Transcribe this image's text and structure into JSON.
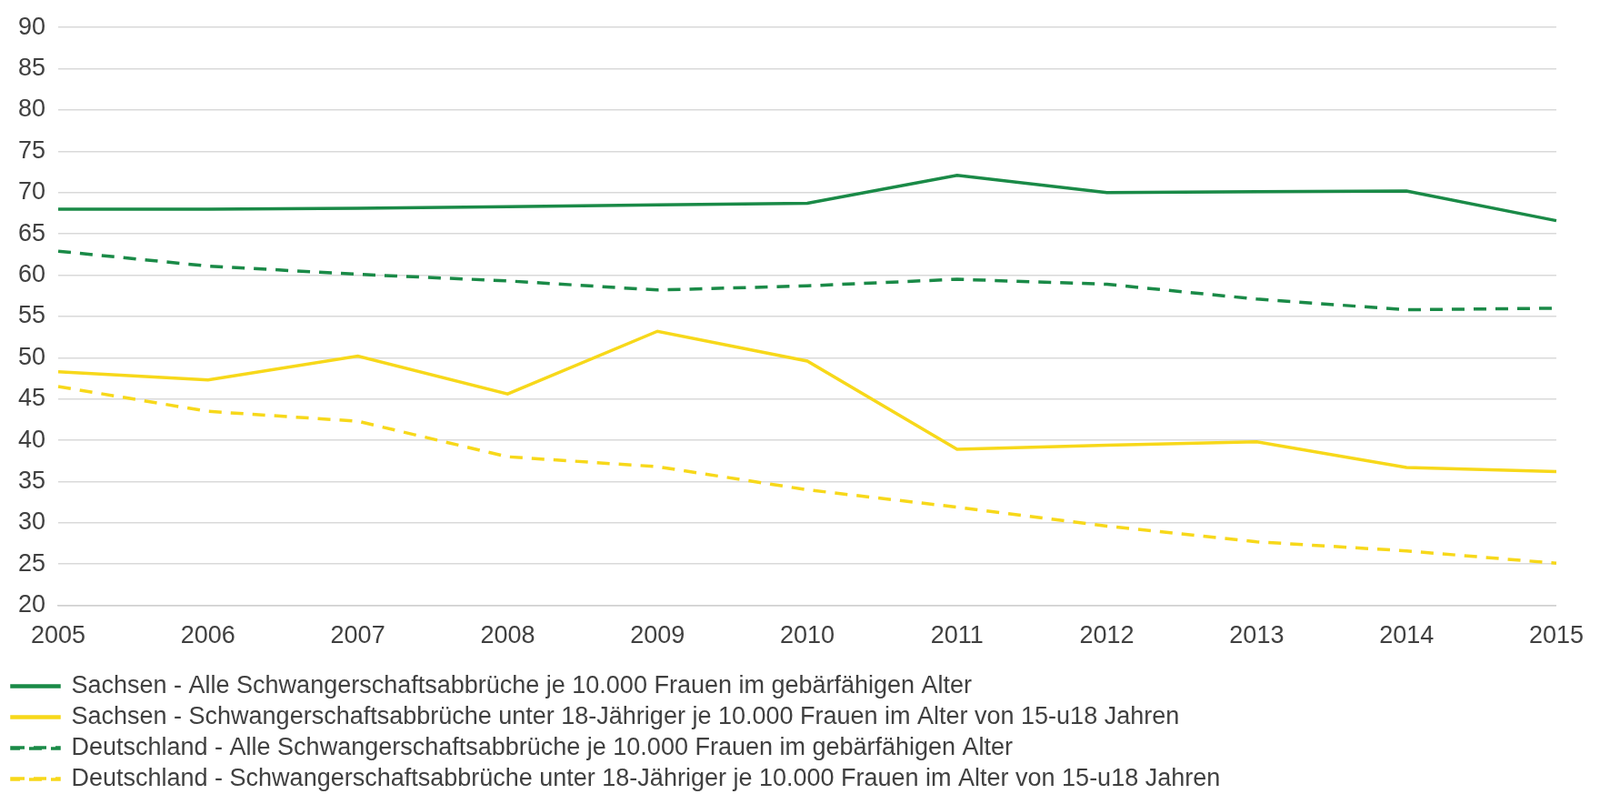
{
  "chart_data": {
    "type": "line",
    "categories": [
      "2005",
      "2006",
      "2007",
      "2008",
      "2009",
      "2010",
      "2011",
      "2012",
      "2013",
      "2014",
      "2015"
    ],
    "series": [
      {
        "name": "Sachsen - Alle Schwangerschaftsabbrüche je 10.000 Frauen im gebärfähigen Alter",
        "color": "#1a8a47",
        "line_style": "solid",
        "values": [
          68.0,
          68.0,
          68.1,
          68.3,
          68.5,
          68.7,
          72.1,
          70.0,
          70.1,
          70.2,
          66.6
        ]
      },
      {
        "name": "Sachsen - Schwangerschaftsabbrüche unter 18-Jähriger je 10.000 Frauen im Alter von 15-u18 Jahren",
        "color": "#f7d81a",
        "line_style": "solid",
        "values": [
          48.3,
          47.3,
          50.2,
          45.6,
          53.2,
          49.6,
          38.9,
          39.4,
          39.8,
          36.7,
          36.2
        ]
      },
      {
        "name": "Deutschland - Alle Schwangerschaftsabbrüche je 10.000 Frauen im gebärfähigen Alter",
        "color": "#1a8a47",
        "line_style": "dashed",
        "values": [
          62.9,
          61.1,
          60.1,
          59.3,
          58.2,
          58.7,
          59.5,
          58.9,
          57.1,
          55.8,
          56.0
        ]
      },
      {
        "name": "Deutschland - Schwangerschaftsabbrüche unter 18-Jähriger je 10.000 Frauen im Alter von 15-u18 Jahren",
        "color": "#f7d81a",
        "line_style": "dashed",
        "values": [
          46.5,
          43.5,
          42.3,
          38.0,
          36.8,
          34.0,
          31.9,
          29.6,
          27.7,
          26.6,
          25.1
        ]
      }
    ],
    "ylim": [
      20,
      90
    ],
    "yticks": [
      20,
      25,
      30,
      35,
      40,
      45,
      50,
      55,
      60,
      65,
      70,
      75,
      80,
      85,
      90
    ],
    "grid": true,
    "legend": "bottom"
  }
}
